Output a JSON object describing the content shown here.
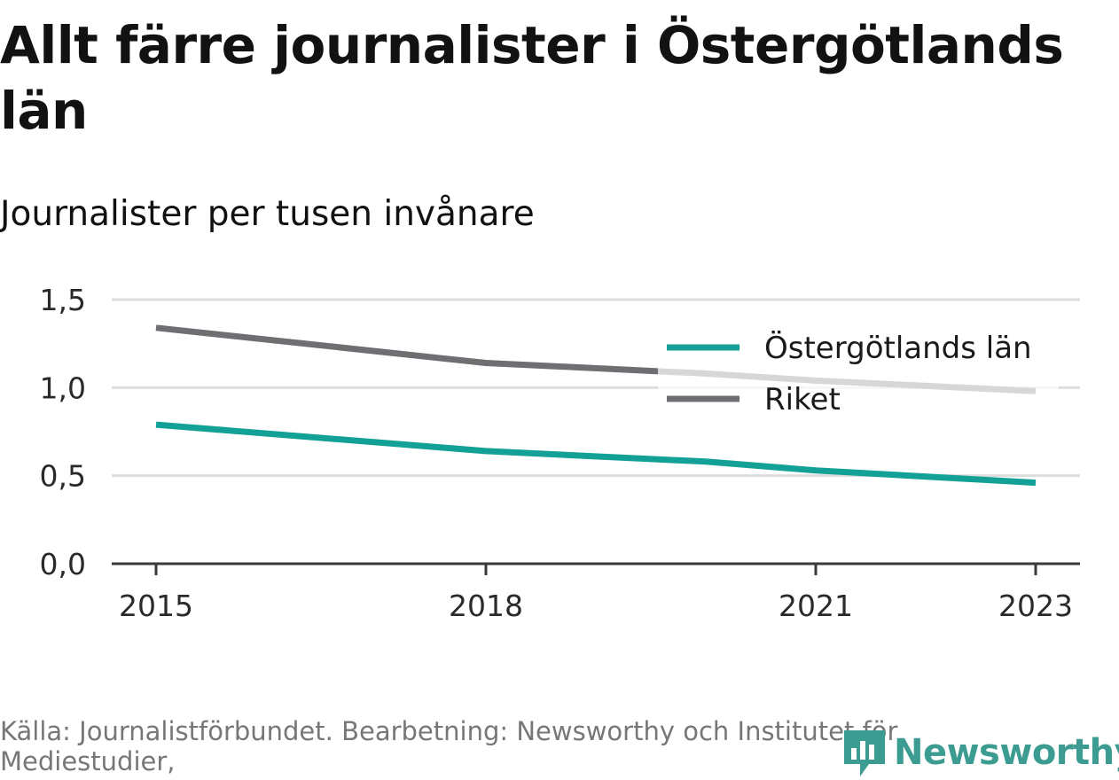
{
  "title": "Allt färre journalister i Östergötlands län",
  "subtitle": "Journalister per tusen invånare",
  "source": "Källa: Journalistförbundet. Bearbetning: Newsworthy och Institutet för Mediestudier,",
  "logo": {
    "text": "Newsworthy",
    "icon": "newsworthy-bar-chart-icon",
    "color": "#3d9c92"
  },
  "chart_data": {
    "type": "line",
    "x": [
      2015,
      2018,
      2021,
      2023
    ],
    "x_tick_labels": [
      "2015",
      "2018",
      "2021",
      "2023"
    ],
    "xlim": [
      2015,
      2023
    ],
    "ylim": [
      0,
      1.5
    ],
    "y_ticks": [
      0,
      0.5,
      1.0,
      1.5
    ],
    "y_tick_labels": [
      "0,0",
      "0,5",
      "1,0",
      "1,5"
    ],
    "grid": true,
    "legend_position": "top-right",
    "series": [
      {
        "name": "Östergötlands län",
        "color": "#12a097",
        "points": [
          [
            2015,
            0.79
          ],
          [
            2018,
            0.64
          ],
          [
            2020,
            0.58
          ],
          [
            2021,
            0.53
          ],
          [
            2023,
            0.46
          ]
        ]
      },
      {
        "name": "Riket",
        "color": "#6f6e73",
        "points": [
          [
            2015,
            1.34
          ],
          [
            2018,
            1.14
          ],
          [
            2020,
            1.08
          ],
          [
            2021,
            1.04
          ],
          [
            2023,
            0.98
          ]
        ]
      }
    ]
  }
}
